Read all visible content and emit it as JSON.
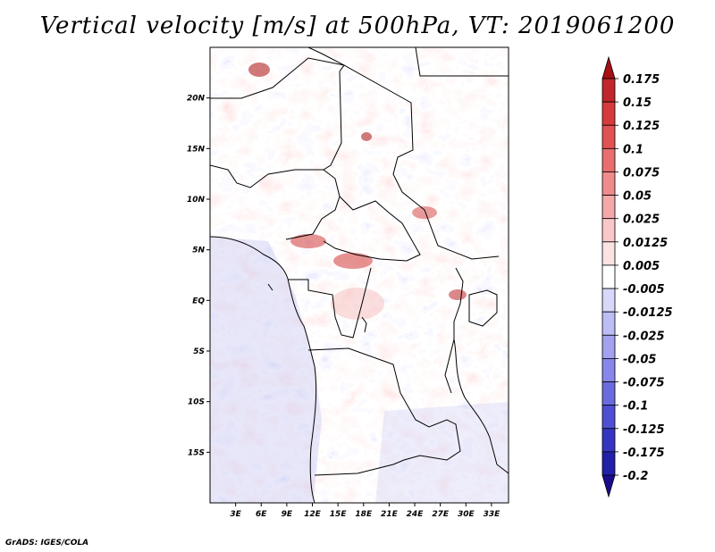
{
  "title": "Vertical velocity [m/s] at 500hPa, VT: 2019061200",
  "credit": "GrADS: IGES/COLA",
  "map": {
    "lon_range": [
      0,
      35
    ],
    "lat_range": [
      -20,
      25
    ],
    "lat_ticks": [
      {
        "value": 20,
        "label": "20N"
      },
      {
        "value": 15,
        "label": "15N"
      },
      {
        "value": 10,
        "label": "10N"
      },
      {
        "value": 5,
        "label": "5N"
      },
      {
        "value": 0,
        "label": "EQ"
      },
      {
        "value": -5,
        "label": "5S"
      },
      {
        "value": -10,
        "label": "10S"
      },
      {
        "value": -15,
        "label": "15S"
      }
    ],
    "lon_ticks": [
      {
        "value": 3,
        "label": "3E"
      },
      {
        "value": 6,
        "label": "6E"
      },
      {
        "value": 9,
        "label": "9E"
      },
      {
        "value": 12,
        "label": "12E"
      },
      {
        "value": 15,
        "label": "15E"
      },
      {
        "value": 18,
        "label": "18E"
      },
      {
        "value": 21,
        "label": "21E"
      },
      {
        "value": 24,
        "label": "24E"
      },
      {
        "value": 27,
        "label": "27E"
      },
      {
        "value": 30,
        "label": "30E"
      },
      {
        "value": 33,
        "label": "33E"
      }
    ]
  },
  "colorbar": {
    "labels": [
      "0.175",
      "0.15",
      "0.125",
      "0.1",
      "0.075",
      "0.05",
      "0.025",
      "0.0125",
      "0.005",
      "-0.005",
      "-0.0125",
      "-0.025",
      "-0.05",
      "-0.075",
      "-0.1",
      "-0.125",
      "-0.175",
      "-0.2"
    ],
    "colors": [
      "#a50f15",
      "#c0262b",
      "#d73a3a",
      "#e35252",
      "#ea6d6d",
      "#f08b8b",
      "#f5a8a8",
      "#f9c7c7",
      "#fce3e3",
      "#ffffff",
      "#d8d8fa",
      "#bdbdf5",
      "#a2a2f0",
      "#8787eb",
      "#6b6be0",
      "#4f4fd4",
      "#3535c2",
      "#2020a8",
      "#1a0a8c"
    ]
  }
}
